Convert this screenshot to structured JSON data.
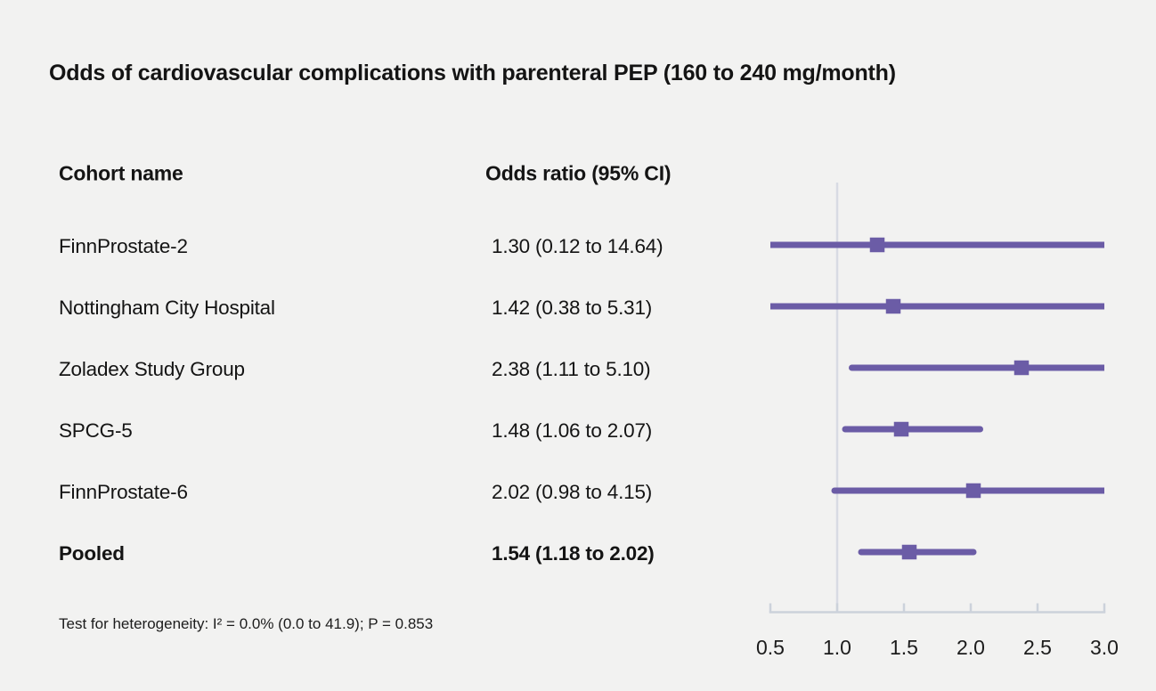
{
  "chart_data": {
    "type": "forest",
    "title": "Odds of cardiovascular complications with parenteral PEP (160 to 240 mg/month)",
    "columns": {
      "cohort": "Cohort name",
      "odds_ratio": "Odds ratio (95% CI)"
    },
    "rows": [
      {
        "cohort": "FinnProstate-2",
        "or_label": "1.30 (0.12 to 14.64)",
        "or": 1.3,
        "ci_low": 0.12,
        "ci_high": 14.64,
        "pooled": false
      },
      {
        "cohort": "Nottingham City Hospital",
        "or_label": "1.42 (0.38 to 5.31)",
        "or": 1.42,
        "ci_low": 0.38,
        "ci_high": 5.31,
        "pooled": false
      },
      {
        "cohort": "Zoladex Study Group",
        "or_label": "2.38 (1.11 to 5.10)",
        "or": 2.38,
        "ci_low": 1.11,
        "ci_high": 5.1,
        "pooled": false
      },
      {
        "cohort": "SPCG-5",
        "or_label": "1.48 (1.06 to 2.07)",
        "or": 1.48,
        "ci_low": 1.06,
        "ci_high": 2.07,
        "pooled": false
      },
      {
        "cohort": "FinnProstate-6",
        "or_label": "2.02 (0.98 to 4.15)",
        "or": 2.02,
        "ci_low": 0.98,
        "ci_high": 4.15,
        "pooled": false
      },
      {
        "cohort": "Pooled",
        "or_label": "1.54 (1.18 to 2.02)",
        "or": 1.54,
        "ci_low": 1.18,
        "ci_high": 2.02,
        "pooled": true
      }
    ],
    "x_axis": {
      "scale": "linear",
      "range": [
        0.5,
        3.0
      ],
      "ticks": [
        0.5,
        1.0,
        1.5,
        2.0,
        2.5,
        3.0
      ],
      "tick_labels": [
        "0.5",
        "1.0",
        "1.5",
        "2.0",
        "2.5",
        "3.0"
      ],
      "reference_line": 1.0,
      "clip_to_range": true
    },
    "footnote": "Test for heterogeneity: I² = 0.0% (0.0 to 41.9); P = 0.853",
    "grid": false,
    "legend": null,
    "colors": {
      "marker": "#6b5ca6",
      "reference_line": "#d8dbe3",
      "axis": "#ccd2db",
      "background": "#f2f2f1",
      "text": "#141414"
    }
  }
}
